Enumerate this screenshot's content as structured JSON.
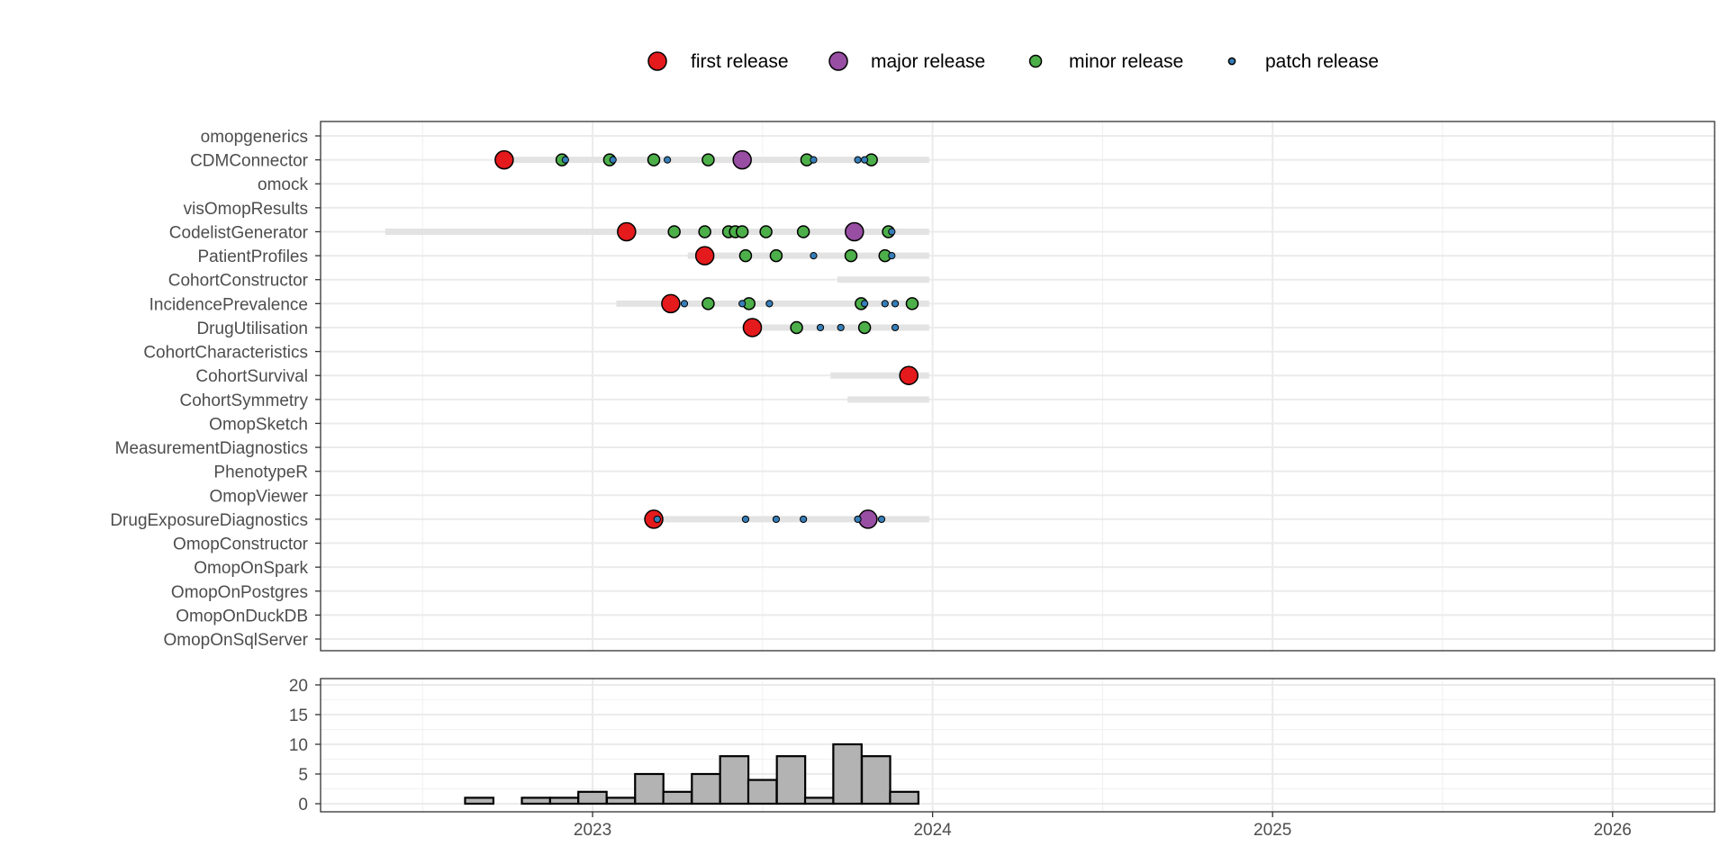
{
  "chart_data": [
    {
      "type": "scatter",
      "title": "",
      "xlabel": "",
      "ylabel": "",
      "xlim": [
        2022.2,
        2026.3
      ],
      "x_ticks": [
        "2023",
        "2024",
        "2025",
        "2026"
      ],
      "legend": {
        "position": "top",
        "entries": [
          {
            "key": "first",
            "label": "first release",
            "color": "#E41A1C"
          },
          {
            "key": "major",
            "label": "major release",
            "color": "#984EA3"
          },
          {
            "key": "minor",
            "label": "minor release",
            "color": "#4DAF4A"
          },
          {
            "key": "patch",
            "label": "patch release",
            "color": "#377EB8"
          }
        ]
      },
      "packages": [
        "omopgenerics",
        "CDMConnector",
        "omock",
        "visOmopResults",
        "CodelistGenerator",
        "PatientProfiles",
        "CohortConstructor",
        "IncidencePrevalence",
        "DrugUtilisation",
        "CohortCharacteristics",
        "CohortSurvival",
        "CohortSymmetry",
        "OmopSketch",
        "MeasurementDiagnostics",
        "PhenotypeR",
        "OmopViewer",
        "DrugExposureDiagnostics",
        "OmopConstructor",
        "OmopOnSpark",
        "OmopOnPostgres",
        "OmopOnDuckDB",
        "OmopOnSqlServer"
      ],
      "activity_ranges": [
        {
          "package": "CDMConnector",
          "start": 2022.72,
          "end": 2023.99
        },
        {
          "package": "CodelistGenerator",
          "start": 2022.39,
          "end": 2023.99
        },
        {
          "package": "PatientProfiles",
          "start": 2023.28,
          "end": 2023.99
        },
        {
          "package": "CohortConstructor",
          "start": 2023.72,
          "end": 2023.99
        },
        {
          "package": "IncidencePrevalence",
          "start": 2023.07,
          "end": 2023.99
        },
        {
          "package": "DrugUtilisation",
          "start": 2023.44,
          "end": 2023.99
        },
        {
          "package": "CohortSurvival",
          "start": 2023.7,
          "end": 2023.99
        },
        {
          "package": "CohortSymmetry",
          "start": 2023.75,
          "end": 2023.99
        },
        {
          "package": "DrugExposureDiagnostics",
          "start": 2023.16,
          "end": 2023.99
        }
      ],
      "releases": [
        {
          "package": "CDMConnector",
          "date": 2022.74,
          "type": "first"
        },
        {
          "package": "CDMConnector",
          "date": 2022.91,
          "type": "minor"
        },
        {
          "package": "CDMConnector",
          "date": 2022.92,
          "type": "patch"
        },
        {
          "package": "CDMConnector",
          "date": 2023.05,
          "type": "minor"
        },
        {
          "package": "CDMConnector",
          "date": 2023.06,
          "type": "patch"
        },
        {
          "package": "CDMConnector",
          "date": 2023.18,
          "type": "minor"
        },
        {
          "package": "CDMConnector",
          "date": 2023.22,
          "type": "patch"
        },
        {
          "package": "CDMConnector",
          "date": 2023.34,
          "type": "minor"
        },
        {
          "package": "CDMConnector",
          "date": 2023.44,
          "type": "major"
        },
        {
          "package": "CDMConnector",
          "date": 2023.63,
          "type": "minor"
        },
        {
          "package": "CDMConnector",
          "date": 2023.65,
          "type": "patch"
        },
        {
          "package": "CDMConnector",
          "date": 2023.78,
          "type": "patch"
        },
        {
          "package": "CDMConnector",
          "date": 2023.8,
          "type": "patch"
        },
        {
          "package": "CDMConnector",
          "date": 2023.82,
          "type": "minor"
        },
        {
          "package": "CodelistGenerator",
          "date": 2023.1,
          "type": "first"
        },
        {
          "package": "CodelistGenerator",
          "date": 2023.24,
          "type": "minor"
        },
        {
          "package": "CodelistGenerator",
          "date": 2023.33,
          "type": "minor"
        },
        {
          "package": "CodelistGenerator",
          "date": 2023.4,
          "type": "minor"
        },
        {
          "package": "CodelistGenerator",
          "date": 2023.42,
          "type": "minor"
        },
        {
          "package": "CodelistGenerator",
          "date": 2023.44,
          "type": "minor"
        },
        {
          "package": "CodelistGenerator",
          "date": 2023.51,
          "type": "minor"
        },
        {
          "package": "CodelistGenerator",
          "date": 2023.62,
          "type": "minor"
        },
        {
          "package": "CodelistGenerator",
          "date": 2023.77,
          "type": "major"
        },
        {
          "package": "CodelistGenerator",
          "date": 2023.87,
          "type": "minor"
        },
        {
          "package": "CodelistGenerator",
          "date": 2023.88,
          "type": "patch"
        },
        {
          "package": "PatientProfiles",
          "date": 2023.33,
          "type": "first"
        },
        {
          "package": "PatientProfiles",
          "date": 2023.45,
          "type": "minor"
        },
        {
          "package": "PatientProfiles",
          "date": 2023.54,
          "type": "minor"
        },
        {
          "package": "PatientProfiles",
          "date": 2023.65,
          "type": "patch"
        },
        {
          "package": "PatientProfiles",
          "date": 2023.76,
          "type": "minor"
        },
        {
          "package": "PatientProfiles",
          "date": 2023.86,
          "type": "minor"
        },
        {
          "package": "PatientProfiles",
          "date": 2023.88,
          "type": "patch"
        },
        {
          "package": "IncidencePrevalence",
          "date": 2023.23,
          "type": "first"
        },
        {
          "package": "IncidencePrevalence",
          "date": 2023.27,
          "type": "patch"
        },
        {
          "package": "IncidencePrevalence",
          "date": 2023.34,
          "type": "minor"
        },
        {
          "package": "IncidencePrevalence",
          "date": 2023.44,
          "type": "patch"
        },
        {
          "package": "IncidencePrevalence",
          "date": 2023.46,
          "type": "minor"
        },
        {
          "package": "IncidencePrevalence",
          "date": 2023.52,
          "type": "patch"
        },
        {
          "package": "IncidencePrevalence",
          "date": 2023.79,
          "type": "minor"
        },
        {
          "package": "IncidencePrevalence",
          "date": 2023.8,
          "type": "patch"
        },
        {
          "package": "IncidencePrevalence",
          "date": 2023.86,
          "type": "patch"
        },
        {
          "package": "IncidencePrevalence",
          "date": 2023.89,
          "type": "patch"
        },
        {
          "package": "IncidencePrevalence",
          "date": 2023.94,
          "type": "minor"
        },
        {
          "package": "DrugUtilisation",
          "date": 2023.47,
          "type": "first"
        },
        {
          "package": "DrugUtilisation",
          "date": 2023.6,
          "type": "minor"
        },
        {
          "package": "DrugUtilisation",
          "date": 2023.67,
          "type": "patch"
        },
        {
          "package": "DrugUtilisation",
          "date": 2023.73,
          "type": "patch"
        },
        {
          "package": "DrugUtilisation",
          "date": 2023.8,
          "type": "minor"
        },
        {
          "package": "DrugUtilisation",
          "date": 2023.89,
          "type": "patch"
        },
        {
          "package": "CohortSurvival",
          "date": 2023.93,
          "type": "first"
        },
        {
          "package": "DrugExposureDiagnostics",
          "date": 2023.18,
          "type": "first"
        },
        {
          "package": "DrugExposureDiagnostics",
          "date": 2023.19,
          "type": "patch"
        },
        {
          "package": "DrugExposureDiagnostics",
          "date": 2023.45,
          "type": "patch"
        },
        {
          "package": "DrugExposureDiagnostics",
          "date": 2023.54,
          "type": "patch"
        },
        {
          "package": "DrugExposureDiagnostics",
          "date": 2023.62,
          "type": "patch"
        },
        {
          "package": "DrugExposureDiagnostics",
          "date": 2023.78,
          "type": "patch"
        },
        {
          "package": "DrugExposureDiagnostics",
          "date": 2023.81,
          "type": "major"
        },
        {
          "package": "DrugExposureDiagnostics",
          "date": 2023.85,
          "type": "patch"
        }
      ]
    },
    {
      "type": "bar",
      "title": "",
      "xlabel": "",
      "ylabel": "",
      "ylim": [
        0,
        20
      ],
      "y_ticks": [
        "0",
        "5",
        "10",
        "15",
        "20"
      ],
      "bin_width": 0.0833,
      "bar_fill": "#B3B3B3",
      "bins": [
        {
          "start": 2022.625,
          "count": 1
        },
        {
          "start": 2022.792,
          "count": 1
        },
        {
          "start": 2022.875,
          "count": 1
        },
        {
          "start": 2022.958,
          "count": 2
        },
        {
          "start": 2023.042,
          "count": 1
        },
        {
          "start": 2023.125,
          "count": 5
        },
        {
          "start": 2023.208,
          "count": 2
        },
        {
          "start": 2023.292,
          "count": 5
        },
        {
          "start": 2023.375,
          "count": 8
        },
        {
          "start": 2023.458,
          "count": 4
        },
        {
          "start": 2023.542,
          "count": 8
        },
        {
          "start": 2023.625,
          "count": 1
        },
        {
          "start": 2023.708,
          "count": 10
        },
        {
          "start": 2023.792,
          "count": 8
        },
        {
          "start": 2023.875,
          "count": 2
        }
      ]
    }
  ]
}
